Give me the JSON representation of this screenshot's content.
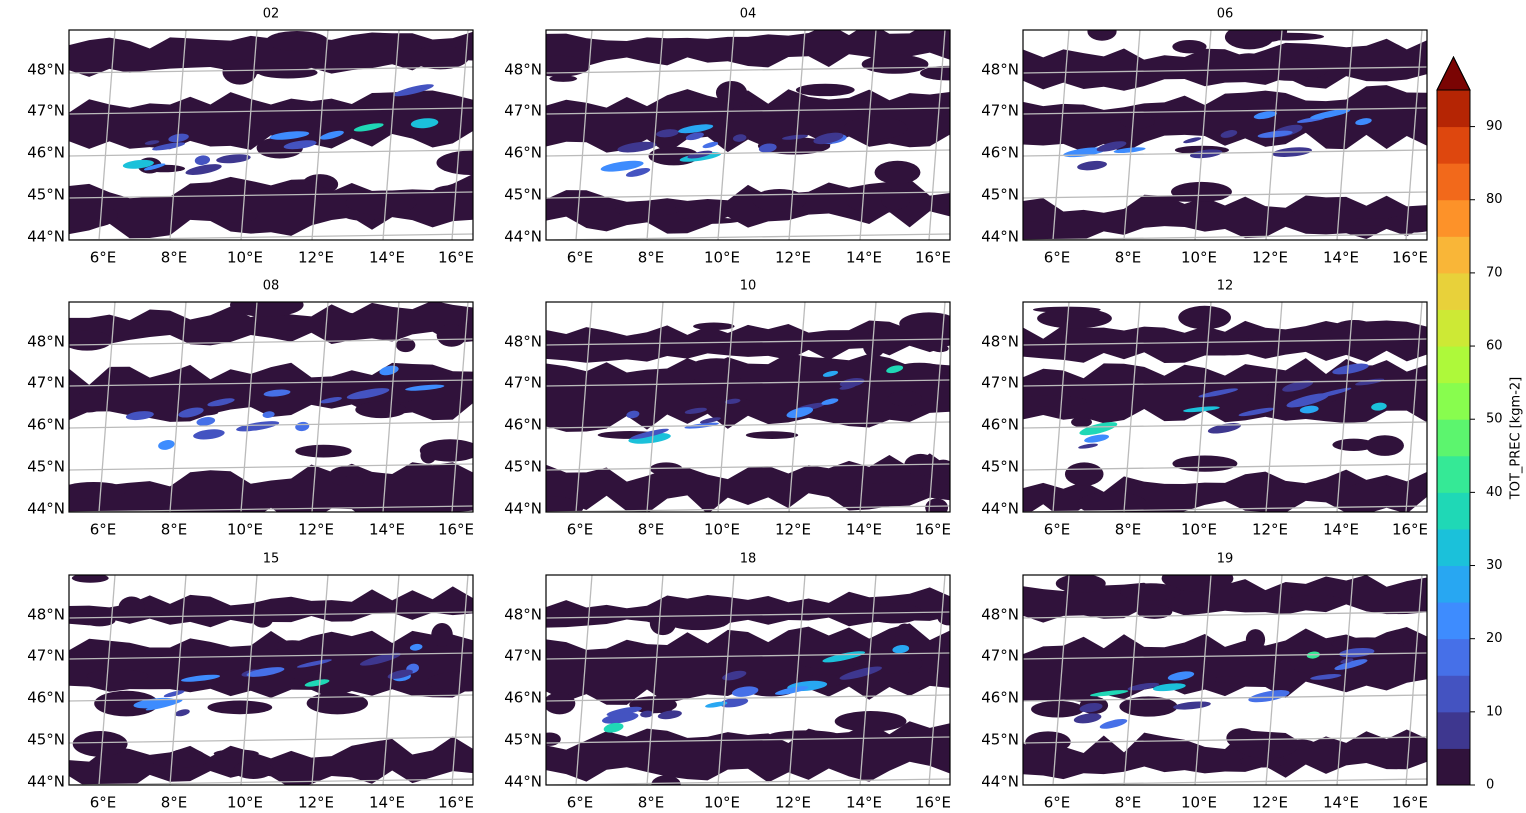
{
  "panels": [
    {
      "title": "02"
    },
    {
      "title": "04"
    },
    {
      "title": "06"
    },
    {
      "title": "08"
    },
    {
      "title": "10"
    },
    {
      "title": "12"
    },
    {
      "title": "15"
    },
    {
      "title": "18"
    },
    {
      "title": "19"
    }
  ],
  "lat_ticks": [
    "48°N",
    "47°N",
    "46°N",
    "45°N",
    "44°N"
  ],
  "lon_ticks": [
    "6°E",
    "8°E",
    "10°E",
    "12°E",
    "14°E",
    "16°E"
  ],
  "colorbar": {
    "label": "TOT_PREC [kgm-2]",
    "ticks": [
      0,
      10,
      20,
      30,
      40,
      50,
      60,
      70,
      80,
      90
    ],
    "levels": [
      0,
      5,
      10,
      15,
      20,
      25,
      30,
      35,
      40,
      45,
      50,
      55,
      60,
      65,
      70,
      75,
      80,
      85,
      90,
      95
    ],
    "colors": [
      "#30123b",
      "#3e378f",
      "#4453c1",
      "#4670e8",
      "#3e8cfe",
      "#28a7f2",
      "#1bc1da",
      "#1fd8b6",
      "#35e996",
      "#5cf56e",
      "#88fd4e",
      "#aef93a",
      "#cde935",
      "#e8d13a",
      "#f9b638",
      "#fd9229",
      "#f2691b",
      "#de470e",
      "#b52504"
    ],
    "extend_color": "#7a0403"
  }
}
